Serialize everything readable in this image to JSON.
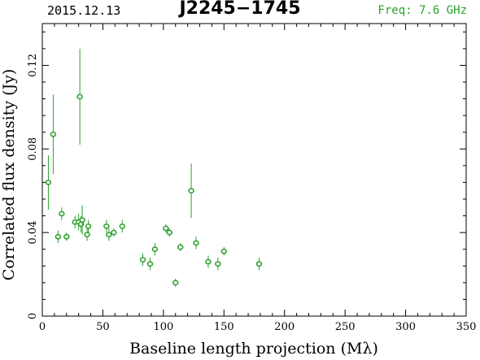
{
  "header": {
    "date": "2015.12.13",
    "source": "J2245−1745",
    "freq": "Freq: 7.6 GHz"
  },
  "colors": {
    "data": "#2ca02c",
    "axes": "#000000"
  },
  "chart_data": {
    "type": "scatter",
    "xlabel": "Baseline length projection (Mλ)",
    "ylabel": "Correlated flux density (Jy)",
    "xlim": [
      0,
      350
    ],
    "ylim": [
      0,
      0.14
    ],
    "xticks": [
      0,
      50,
      100,
      150,
      200,
      250,
      300,
      350
    ],
    "xtick_labels": [
      "0",
      "50",
      "100",
      "150",
      "200",
      "250",
      "300",
      "350"
    ],
    "yticks": [
      0,
      0.04,
      0.08,
      0.12
    ],
    "ytick_labels": [
      "0",
      "0.04",
      "0.08",
      "0.12"
    ],
    "grid": false,
    "series": [
      {
        "points": [
          {
            "x": 5,
            "y": 0.064,
            "err": 0.013
          },
          {
            "x": 9,
            "y": 0.087,
            "err": 0.019
          },
          {
            "x": 13,
            "y": 0.038,
            "err": 0.003
          },
          {
            "x": 16,
            "y": 0.049,
            "err": 0.003
          },
          {
            "x": 20,
            "y": 0.038,
            "err": 0.002
          },
          {
            "x": 27,
            "y": 0.045,
            "err": 0.003
          },
          {
            "x": 30,
            "y": 0.045,
            "err": 0.004
          },
          {
            "x": 31,
            "y": 0.105,
            "err": 0.023
          },
          {
            "x": 32,
            "y": 0.044,
            "err": 0.004
          },
          {
            "x": 33,
            "y": 0.046,
            "err": 0.007
          },
          {
            "x": 37,
            "y": 0.039,
            "err": 0.003
          },
          {
            "x": 38,
            "y": 0.043,
            "err": 0.003
          },
          {
            "x": 53,
            "y": 0.043,
            "err": 0.003
          },
          {
            "x": 55,
            "y": 0.039,
            "err": 0.003
          },
          {
            "x": 59,
            "y": 0.04,
            "err": 0.002
          },
          {
            "x": 66,
            "y": 0.043,
            "err": 0.003
          },
          {
            "x": 83,
            "y": 0.027,
            "err": 0.003
          },
          {
            "x": 89,
            "y": 0.025,
            "err": 0.003
          },
          {
            "x": 93,
            "y": 0.032,
            "err": 0.003
          },
          {
            "x": 102,
            "y": 0.042,
            "err": 0.002
          },
          {
            "x": 105,
            "y": 0.04,
            "err": 0.002
          },
          {
            "x": 110,
            "y": 0.016,
            "err": 0.002
          },
          {
            "x": 114,
            "y": 0.033,
            "err": 0.002
          },
          {
            "x": 123,
            "y": 0.06,
            "err": 0.013
          },
          {
            "x": 127,
            "y": 0.035,
            "err": 0.003
          },
          {
            "x": 137,
            "y": 0.026,
            "err": 0.003
          },
          {
            "x": 145,
            "y": 0.025,
            "err": 0.003
          },
          {
            "x": 150,
            "y": 0.031,
            "err": 0.002
          },
          {
            "x": 179,
            "y": 0.025,
            "err": 0.003
          }
        ]
      }
    ]
  }
}
